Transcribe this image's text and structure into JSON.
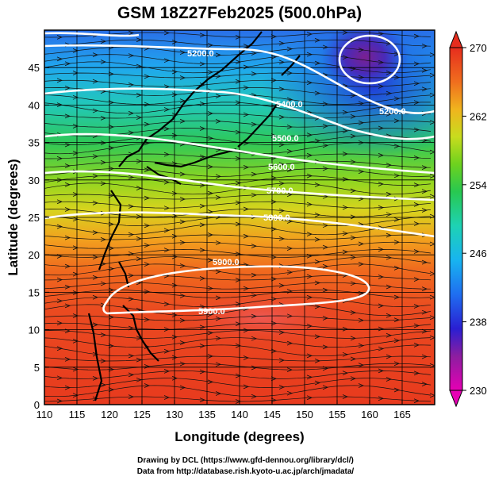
{
  "chart_data": {
    "type": "heatmap",
    "title": "GSM 18Z27Feb2025 (500.0hPa)",
    "xlabel": "Longitude (degrees)",
    "ylabel": "Latitude  (degrees)",
    "xlim": [
      110,
      170
    ],
    "ylim": [
      0,
      50
    ],
    "x_ticks": [
      110,
      115,
      120,
      125,
      130,
      135,
      140,
      145,
      150,
      155,
      160,
      165
    ],
    "y_ticks": [
      0,
      5,
      10,
      15,
      20,
      25,
      30,
      35,
      40,
      45
    ],
    "colorbar": {
      "min": 230,
      "max": 270,
      "ticks": [
        230,
        238,
        246,
        254,
        262,
        270
      ],
      "colors": [
        "#e600b4",
        "#8c1ea0",
        "#2a1fd2",
        "#1f6ef0",
        "#18b4f0",
        "#1ed2b4",
        "#28c850",
        "#6ed21e",
        "#c8dc1e",
        "#f0b41e",
        "#f06e1e",
        "#e62d1e"
      ]
    },
    "contours": [
      {
        "label": "5200.0",
        "level": 5200
      },
      {
        "label": "5400.0",
        "level": 5400
      },
      {
        "label": "5500.0",
        "level": 5500
      },
      {
        "label": "5600.0",
        "level": 5600
      },
      {
        "label": "5700.0",
        "level": 5700
      },
      {
        "label": "5800.0",
        "level": 5800
      },
      {
        "label": "5900.0",
        "level": 5900
      }
    ],
    "temperature_field_note": "Temperature (K) decreasing poleward from ~266 in tropics to ~236 near 45N 160E low centre",
    "low_center": {
      "lon": 159,
      "lat": 47
    }
  },
  "credits": {
    "line1": "Drawing by DCL (https://www.gfd-dennou.org/library/dcl/)",
    "line2": "Data from http://database.rish.kyoto-u.ac.jp/arch/jmadata/"
  }
}
